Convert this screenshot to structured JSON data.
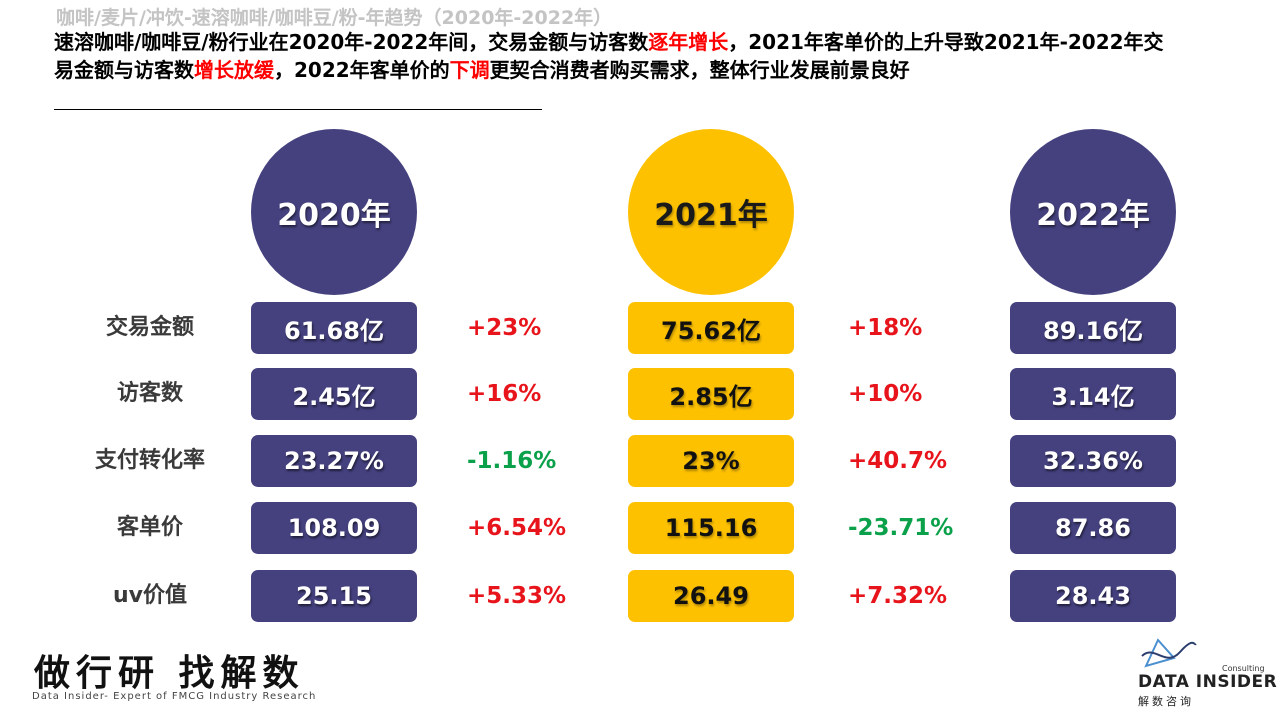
{
  "header": {
    "title": "咖啡/麦片/冲饮-速溶咖啡/咖啡豆/粉-年趋势（2020年-2022年）"
  },
  "summary": {
    "part1": "速溶咖啡/咖啡豆/粉行业在2020年-2022年间，交易金额与访客数",
    "hl1": "逐年增长",
    "part2": "，2021年客单价的上升导致2021年-2022年交易金额与访客数",
    "hl2": "增长放缓",
    "part3": "，2022年客单价的",
    "hl3": "下调",
    "part4": "更契合消费者购买需求，整体行业发展前景良好"
  },
  "years": {
    "y2020": "2020年",
    "y2021": "2021年",
    "y2022": "2022年"
  },
  "rows": [
    {
      "label": "交易金额",
      "v2020": "61.68亿",
      "c1": "+23%",
      "v2021": "75.62亿",
      "c2": "+18%",
      "v2022": "89.16亿"
    },
    {
      "label": "访客数",
      "v2020": "2.45亿",
      "c1": "+16%",
      "v2021": "2.85亿",
      "c2": "+10%",
      "v2022": "3.14亿"
    },
    {
      "label": "支付转化率",
      "v2020": "23.27%",
      "c1": "-1.16%",
      "v2021": "23%",
      "c2": "+40.7%",
      "v2022": "32.36%"
    },
    {
      "label": "客单价",
      "v2020": "108.09",
      "c1": "+6.54%",
      "v2021": "115.16",
      "c2": "-23.71%",
      "v2022": "87.86"
    },
    {
      "label": "uv价值",
      "v2020": "25.15",
      "c1": "+5.33%",
      "v2021": "26.49",
      "c2": "+7.32%",
      "v2022": "28.43"
    }
  ],
  "colors": {
    "dark_box": "#45417f",
    "gold_box": "#fdc100",
    "increase": "#e8141b",
    "decrease": "#0aa14a",
    "highlight": "#ff0000"
  },
  "footer": {
    "slogan": "做行研 找解数",
    "subtitle": "Data Insider- Expert of FMCG Industry Research",
    "logo_small": "Consulting",
    "logo_name": "DATA INSIDER",
    "logo_cn": "解数咨询",
    "logo_icon": "triangle-wave-icon"
  }
}
